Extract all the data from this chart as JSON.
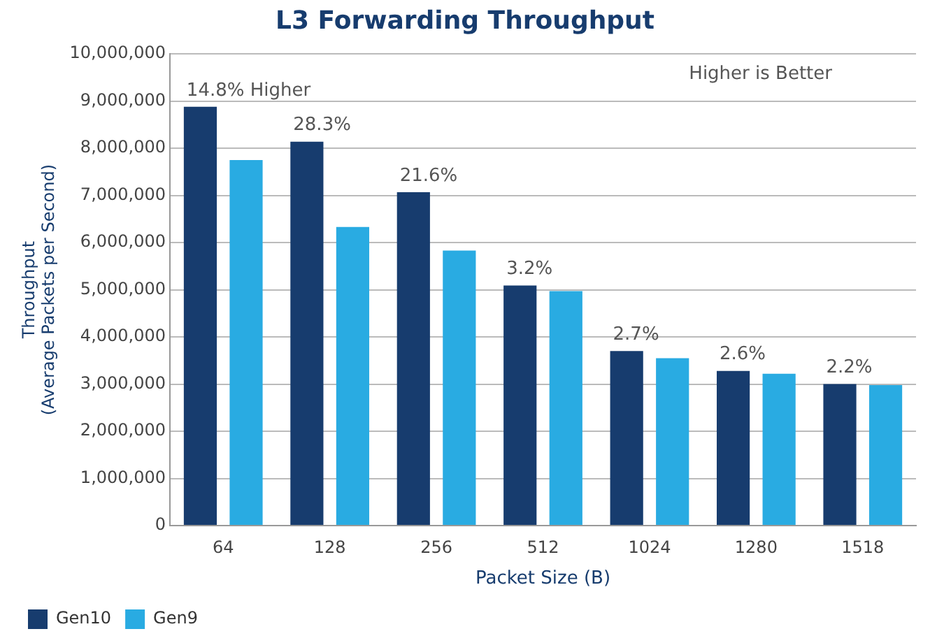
{
  "chart_data": {
    "type": "bar",
    "title": "L3 Forwarding Throughput",
    "xlabel": "Packet Size (B)",
    "ylabel": "Throughput\n(Average Packets per Second)",
    "categories": [
      "64",
      "128",
      "256",
      "512",
      "1024",
      "1280",
      "1518"
    ],
    "series": [
      {
        "name": "Gen10",
        "color": "#173c6e",
        "values": [
          8880000,
          8140000,
          7070000,
          5090000,
          3700000,
          3280000,
          3000000
        ]
      },
      {
        "name": "Gen9",
        "color": "#29abe2",
        "values": [
          7750000,
          6330000,
          5830000,
          4970000,
          3550000,
          3220000,
          2980000
        ]
      }
    ],
    "ylim": [
      0,
      10000000
    ],
    "yticks": [
      {
        "value": 0,
        "label": "0"
      },
      {
        "value": 1000000,
        "label": "1,000,000"
      },
      {
        "value": 2000000,
        "label": "2,000,000"
      },
      {
        "value": 3000000,
        "label": "3,000,000"
      },
      {
        "value": 4000000,
        "label": "4,000,000"
      },
      {
        "value": 5000000,
        "label": "5,000,000"
      },
      {
        "value": 6000000,
        "label": "6,000,000"
      },
      {
        "value": 7000000,
        "label": "7,000,000"
      },
      {
        "value": 8000000,
        "label": "8,000,000"
      },
      {
        "value": 9000000,
        "label": "9,000,000"
      },
      {
        "value": 10000000,
        "label": "10,000,000"
      }
    ],
    "grid": "y",
    "legend": "bottom left",
    "annotations": [
      {
        "text": "14.8% Higher",
        "x": "64",
        "y": 8880000
      },
      {
        "text": "28.3%",
        "x": "128",
        "y": 8140000
      },
      {
        "text": "21.6%",
        "x": "256",
        "y": 7070000
      },
      {
        "text": "3.2%",
        "x": "512",
        "y": 5090000
      },
      {
        "text": "2.7%",
        "x": "1024",
        "y": 3700000
      },
      {
        "text": "2.6%",
        "x": "1280",
        "y": 3280000
      },
      {
        "text": "2.2%",
        "x": "1518",
        "y": 3000000
      },
      "Higher is Better"
    ]
  }
}
